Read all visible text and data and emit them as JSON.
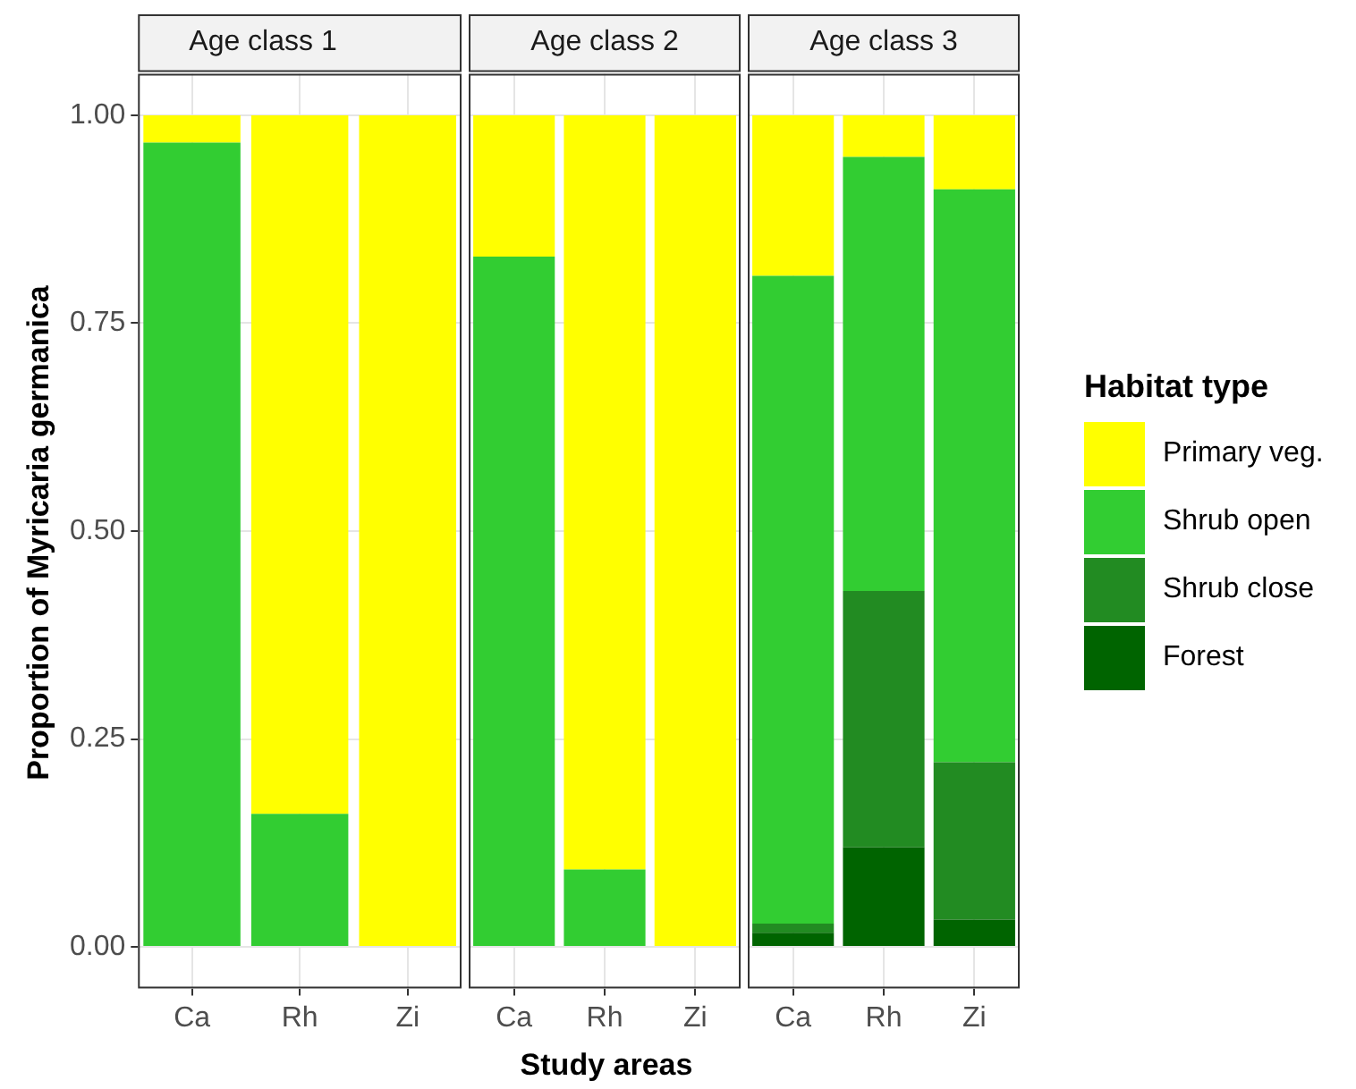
{
  "chart_data": [
    {
      "type": "bar",
      "title": "Age class 1",
      "ylabel": "Proportion of Myricaria germanica",
      "categories": [
        "Ca",
        "Rh",
        "Zi"
      ],
      "stacked": true,
      "ylim": [
        -0.05,
        1.05
      ],
      "yticks": [
        {
          "value": 0,
          "label": "0.00"
        },
        {
          "value": 0.25,
          "label": "0.25"
        },
        {
          "value": 0.5,
          "label": "0.50"
        },
        {
          "value": 0.75,
          "label": "0.75"
        },
        {
          "value": 1,
          "label": "1.00"
        }
      ],
      "grid": true,
      "series": [
        {
          "color": "#32cd32",
          "values": [
            0.967,
            0.16,
            0
          ]
        },
        {
          "color": "#ffff00",
          "values": [
            0.033,
            0.84,
            1
          ]
        }
      ]
    },
    {
      "type": "bar",
      "title": "Age class 2",
      "xlabel": "Study areas",
      "categories": [
        "Ca",
        "Rh",
        "Zi"
      ],
      "stacked": true,
      "ylim": [
        -0.05,
        1.05
      ],
      "yticks": [
        0,
        0.25,
        0.5,
        0.75,
        1
      ],
      "grid": true,
      "tick_labels": "x",
      "series": [
        {
          "color": "#32cd32",
          "values": [
            0.83,
            0.093,
            0
          ]
        },
        {
          "color": "#ffff00",
          "values": [
            0.17,
            0.907,
            1
          ]
        }
      ]
    },
    {
      "type": "bar",
      "title": "Age class 3",
      "legend_title": "Habitat type",
      "legend": "right",
      "categories": [
        "Ca",
        "Rh",
        "Zi"
      ],
      "stacked": true,
      "ylim": [
        -0.05,
        1.05
      ],
      "yticks": [
        0,
        0.25,
        0.5,
        0.75,
        1
      ],
      "grid": true,
      "tick_labels": "x",
      "series": [
        {
          "name": "Forest",
          "color": "#006400",
          "values": [
            0.017,
            0.12,
            0.033
          ]
        },
        {
          "name": "Shrub close",
          "color": "#228b22",
          "values": [
            0.011,
            0.308,
            0.189
          ]
        },
        {
          "name": "Shrub open",
          "color": "#32cd32",
          "values": [
            0.779,
            0.522,
            0.689
          ]
        },
        {
          "name": "Primary veg.",
          "color": "#ffff00",
          "values": [
            0.193,
            0.05,
            0.089
          ]
        }
      ]
    }
  ]
}
